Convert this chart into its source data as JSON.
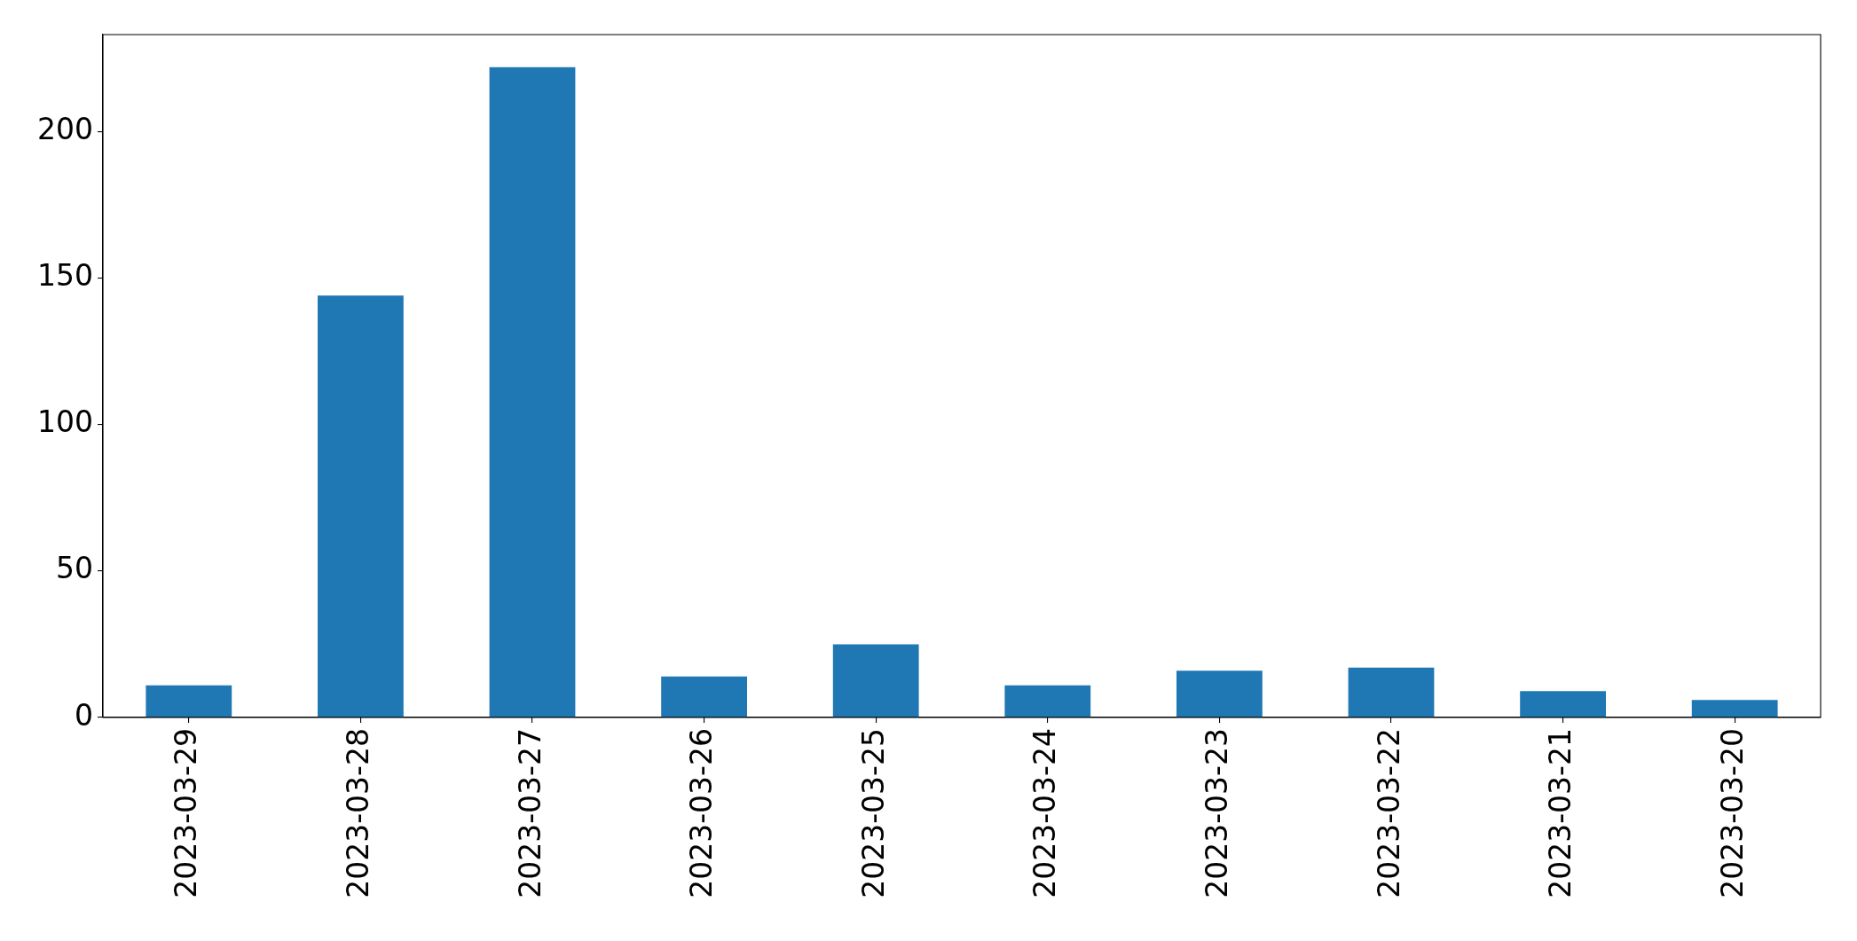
{
  "chart_data": {
    "type": "bar",
    "categories": [
      "2023-03-29",
      "2023-03-28",
      "2023-03-27",
      "2023-03-26",
      "2023-03-25",
      "2023-03-24",
      "2023-03-23",
      "2023-03-22",
      "2023-03-21",
      "2023-03-20"
    ],
    "values": [
      11,
      144,
      222,
      14,
      25,
      11,
      16,
      17,
      9,
      6
    ],
    "color": "#1f77b4",
    "ylim": [
      0,
      233.1
    ],
    "yticks": [
      0,
      50,
      100,
      150,
      200
    ],
    "grid": false
  }
}
